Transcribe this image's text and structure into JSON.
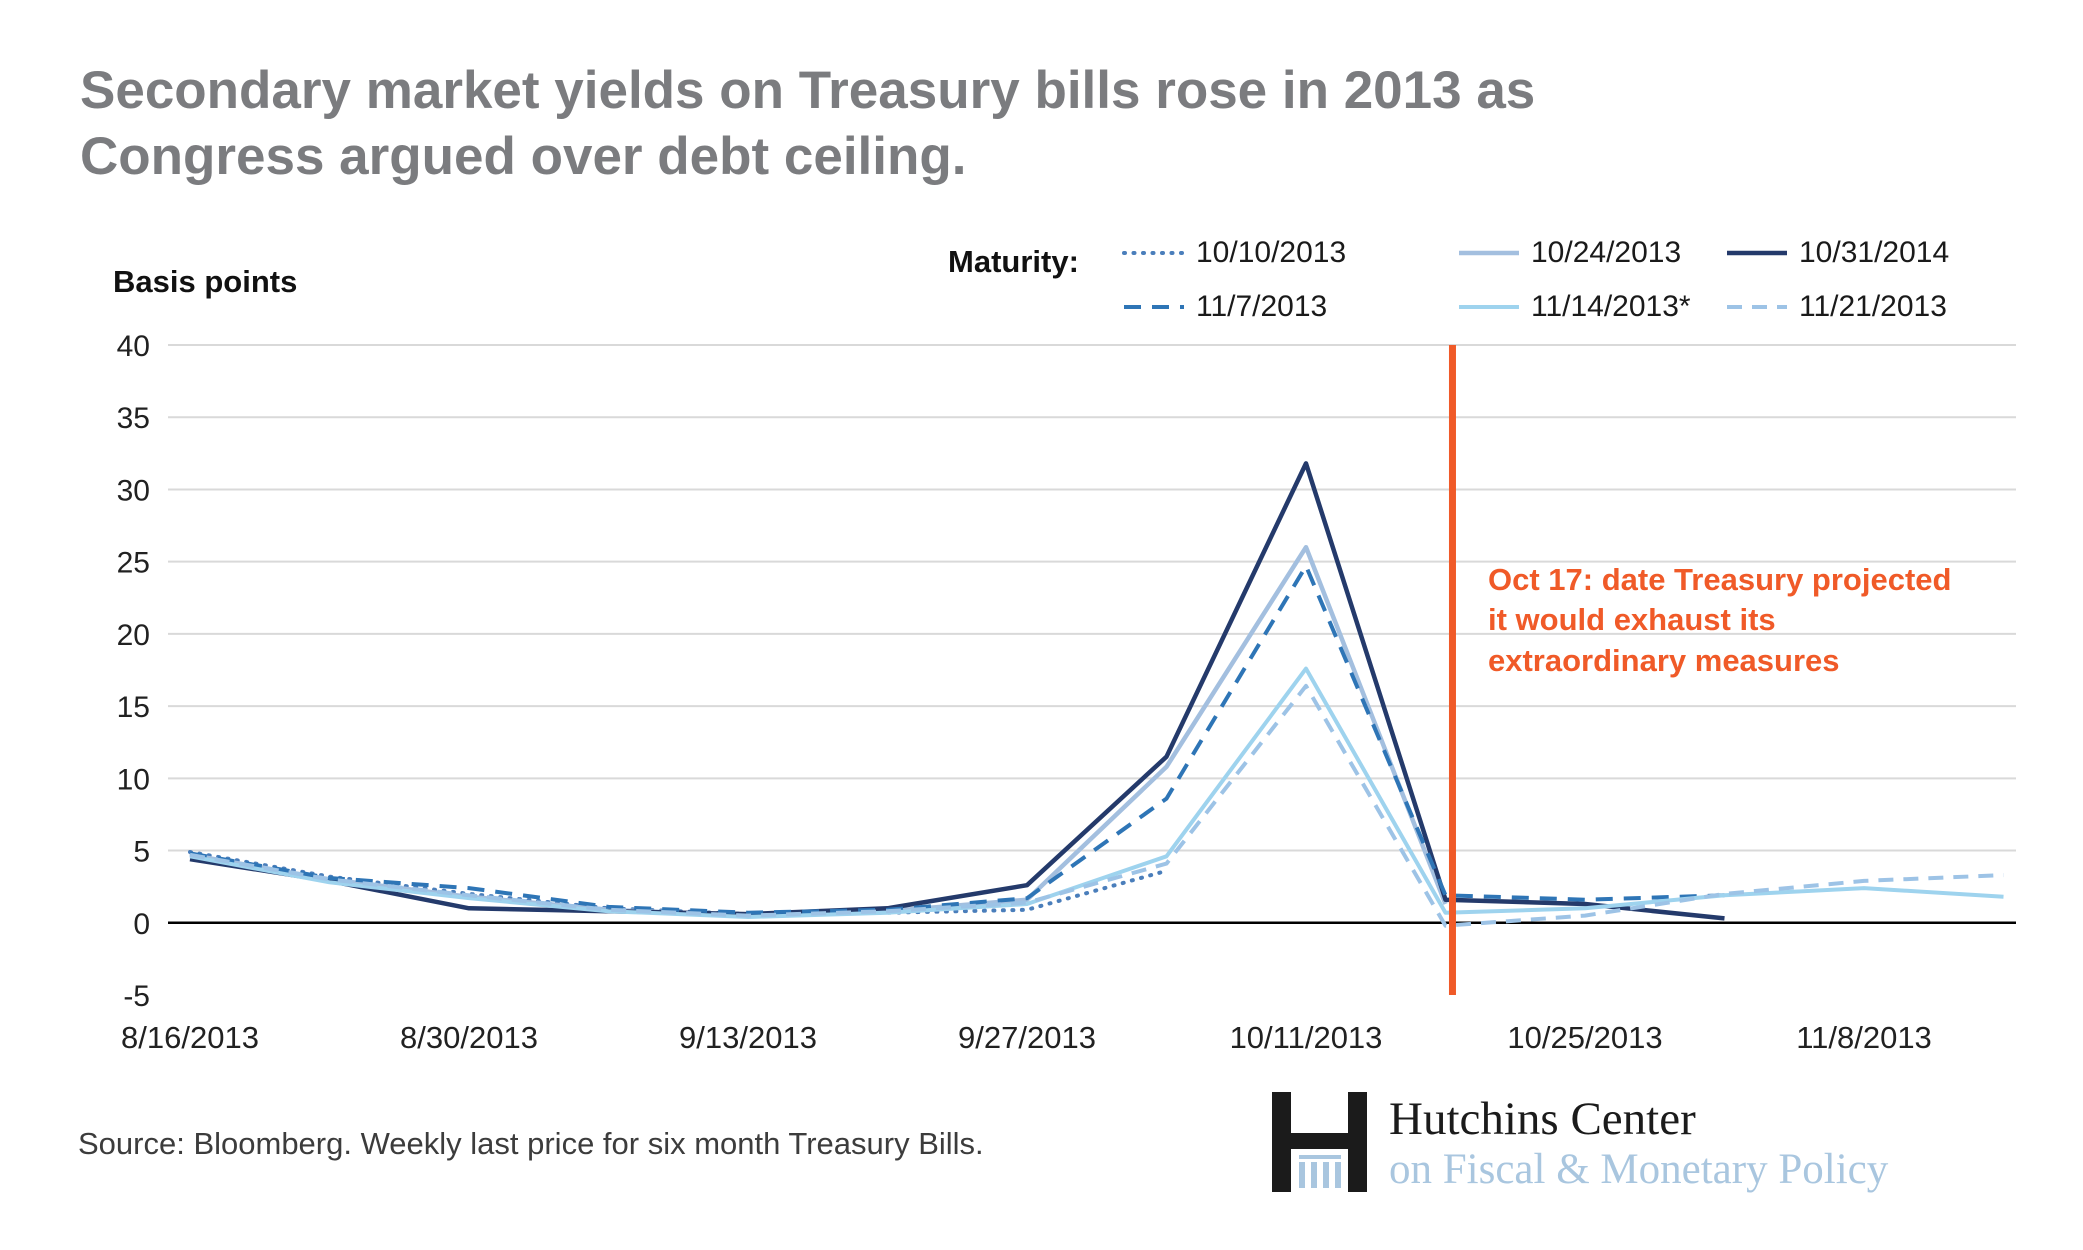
{
  "title": "Secondary market yields on Treasury bills rose in 2013 as\nCongress argued over debt ceiling.",
  "legend": {
    "label": "Maturity:"
  },
  "annotation": {
    "text": "Oct 17: date Treasury projected\nit would exhaust its\nextraordinary measures",
    "color": "#f05a28"
  },
  "source": {
    "text": "Source: Bloomberg. Weekly last price for six month Treasury Bills."
  },
  "logo": {
    "line1": "Hutchins Center",
    "line2": "on Fiscal & Monetary Policy",
    "line2_color": "#a9c6df",
    "mark_color": "#1b1b1b",
    "column_color": "#a9c6df"
  },
  "chart_data": {
    "type": "line",
    "title": "Secondary market yields on Treasury bills rose in 2013 as Congress argued over debt ceiling.",
    "ylabel": "Basis points",
    "xlabel": "",
    "ylim": [
      -5,
      40
    ],
    "yticks": [
      40,
      35,
      30,
      25,
      20,
      15,
      10,
      5,
      0,
      -5
    ],
    "grid": "horizontal",
    "legend_position": "top-right",
    "x": [
      "8/16/2013",
      "8/23/2013",
      "8/30/2013",
      "9/6/2013",
      "9/13/2013",
      "9/20/2013",
      "9/27/2013",
      "10/4/2013",
      "10/11/2013",
      "10/18/2013",
      "10/25/2013",
      "11/1/2013",
      "11/8/2013",
      "11/15/2013"
    ],
    "x_tick_labels": [
      "8/16/2013",
      "8/30/2013",
      "9/13/2013",
      "9/27/2013",
      "10/11/2013",
      "10/25/2013",
      "11/8/2013"
    ],
    "x_tick_indices": [
      0,
      2,
      4,
      6,
      8,
      10,
      12
    ],
    "series": [
      {
        "name": "10/10/2013",
        "color": "#4a7ebb",
        "style": "dotted",
        "width": 4,
        "values": [
          4.9,
          3.2,
          2.0,
          1.0,
          0.6,
          0.7,
          0.9,
          3.6,
          null,
          null,
          null,
          null,
          null,
          null
        ]
      },
      {
        "name": "10/24/2013",
        "color": "#a3bfdf",
        "style": "solid",
        "width": 4.5,
        "values": [
          4.7,
          3.0,
          1.8,
          0.9,
          0.5,
          0.8,
          1.6,
          10.8,
          26.0,
          1.3,
          null,
          null,
          null,
          null
        ]
      },
      {
        "name": "10/31/2014",
        "color": "#243a6b",
        "style": "solid",
        "width": 4.5,
        "values": [
          4.4,
          2.9,
          1.0,
          0.8,
          0.6,
          1.0,
          2.6,
          11.5,
          31.8,
          1.6,
          1.3,
          0.3,
          null,
          null
        ]
      },
      {
        "name": "11/7/2013",
        "color": "#2e75b6",
        "style": "dashed",
        "width": 4,
        "values": [
          4.8,
          3.1,
          2.4,
          1.1,
          0.7,
          0.9,
          1.7,
          8.6,
          24.7,
          1.9,
          1.6,
          1.9,
          null,
          null
        ]
      },
      {
        "name": "11/14/2013*",
        "color": "#9ed3ee",
        "style": "solid",
        "width": 4,
        "values": [
          4.6,
          2.8,
          1.7,
          0.8,
          0.4,
          0.7,
          1.3,
          4.6,
          17.6,
          0.7,
          1.0,
          1.9,
          2.4,
          1.8
        ]
      },
      {
        "name": "11/21/2013",
        "color": "#9dc3e6",
        "style": "dashed-short",
        "width": 4,
        "values": [
          4.7,
          3.0,
          1.9,
          0.9,
          0.5,
          0.8,
          1.4,
          4.1,
          16.4,
          -0.2,
          0.5,
          2.0,
          2.9,
          3.3
        ]
      }
    ],
    "event_line": {
      "label": "Oct 17",
      "date": "10/17/2013",
      "x_index": 9.05,
      "color": "#f05a28"
    }
  }
}
